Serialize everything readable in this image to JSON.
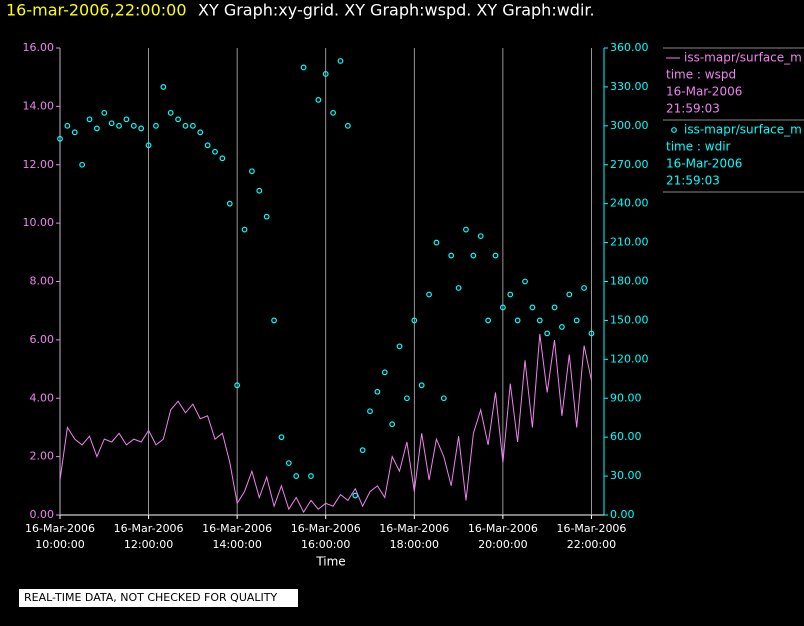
{
  "chart_data": {
    "type": "line_scatter",
    "title_time": "16-mar-2006,22:00:00",
    "title": "XY Graph:xy-grid.  XY Graph:wspd.  XY Graph:wdir.",
    "xlabel": "Time",
    "footer": "REAL-TIME DATA, NOT CHECKED FOR QUALITY",
    "xlim": [
      "2006-03-16T10:00",
      "2006-03-16T22:17"
    ],
    "xticks": [
      {
        "value": "2006-03-16T10:00",
        "label": "16-Mar-2006 10:00:00"
      },
      {
        "value": "2006-03-16T12:00",
        "label": "16-Mar-2006 12:00:00"
      },
      {
        "value": "2006-03-16T14:00",
        "label": "16-Mar-2006 14:00:00"
      },
      {
        "value": "2006-03-16T16:00",
        "label": "16-Mar-2006 16:00:00"
      },
      {
        "value": "2006-03-16T18:00",
        "label": "16-Mar-2006 18:00:00"
      },
      {
        "value": "2006-03-16T20:00",
        "label": "16-Mar-2006 20:00:00"
      },
      {
        "value": "2006-03-16T22:00",
        "label": "16-Mar-2006 22:00:00"
      }
    ],
    "ylim": [
      0,
      16
    ],
    "yticks": [
      {
        "value": 0,
        "label": "0.00"
      },
      {
        "value": 2,
        "label": "2.00"
      },
      {
        "value": 4,
        "label": "4.00"
      },
      {
        "value": 6,
        "label": "6.00"
      },
      {
        "value": 8,
        "label": "8.00"
      },
      {
        "value": 10,
        "label": "10.00"
      },
      {
        "value": 12,
        "label": "12.00"
      },
      {
        "value": 14,
        "label": "14.00"
      },
      {
        "value": 16,
        "label": "16.00"
      }
    ],
    "y2lim": [
      0,
      360
    ],
    "y2ticks": [
      {
        "value": 0,
        "label": "0.00"
      },
      {
        "value": 30,
        "label": "30.00"
      },
      {
        "value": 60,
        "label": "60.00"
      },
      {
        "value": 90,
        "label": "90.00"
      },
      {
        "value": 120,
        "label": "120.00"
      },
      {
        "value": 150,
        "label": "150.00"
      },
      {
        "value": 180,
        "label": "180.00"
      },
      {
        "value": 210,
        "label": "210.00"
      },
      {
        "value": 240,
        "label": "240.00"
      },
      {
        "value": 270,
        "label": "270.00"
      },
      {
        "value": 300,
        "label": "300.00"
      },
      {
        "value": 330,
        "label": "330.00"
      },
      {
        "value": 360,
        "label": "360.00"
      }
    ],
    "grid": true,
    "x": [
      "2006-03-16T10:00",
      "2006-03-16T10:10",
      "2006-03-16T10:20",
      "2006-03-16T10:30",
      "2006-03-16T10:40",
      "2006-03-16T10:50",
      "2006-03-16T11:00",
      "2006-03-16T11:10",
      "2006-03-16T11:20",
      "2006-03-16T11:30",
      "2006-03-16T11:40",
      "2006-03-16T11:50",
      "2006-03-16T12:00",
      "2006-03-16T12:10",
      "2006-03-16T12:20",
      "2006-03-16T12:30",
      "2006-03-16T12:40",
      "2006-03-16T12:50",
      "2006-03-16T13:00",
      "2006-03-16T13:10",
      "2006-03-16T13:20",
      "2006-03-16T13:30",
      "2006-03-16T13:40",
      "2006-03-16T13:50",
      "2006-03-16T14:00",
      "2006-03-16T14:10",
      "2006-03-16T14:20",
      "2006-03-16T14:30",
      "2006-03-16T14:40",
      "2006-03-16T14:50",
      "2006-03-16T15:00",
      "2006-03-16T15:10",
      "2006-03-16T15:20",
      "2006-03-16T15:30",
      "2006-03-16T15:40",
      "2006-03-16T15:50",
      "2006-03-16T16:00",
      "2006-03-16T16:10",
      "2006-03-16T16:20",
      "2006-03-16T16:30",
      "2006-03-16T16:40",
      "2006-03-16T16:50",
      "2006-03-16T17:00",
      "2006-03-16T17:10",
      "2006-03-16T17:20",
      "2006-03-16T17:30",
      "2006-03-16T17:40",
      "2006-03-16T17:50",
      "2006-03-16T18:00",
      "2006-03-16T18:10",
      "2006-03-16T18:20",
      "2006-03-16T18:30",
      "2006-03-16T18:40",
      "2006-03-16T18:50",
      "2006-03-16T19:00",
      "2006-03-16T19:10",
      "2006-03-16T19:20",
      "2006-03-16T19:30",
      "2006-03-16T19:40",
      "2006-03-16T19:50",
      "2006-03-16T20:00",
      "2006-03-16T20:10",
      "2006-03-16T20:20",
      "2006-03-16T20:30",
      "2006-03-16T20:40",
      "2006-03-16T20:50",
      "2006-03-16T21:00",
      "2006-03-16T21:10",
      "2006-03-16T21:20",
      "2006-03-16T21:30",
      "2006-03-16T21:40",
      "2006-03-16T21:50",
      "2006-03-16T22:00"
    ],
    "series": [
      {
        "name": "iss-mapr/surface_m",
        "legend_lines": [
          "time : wspd",
          "16-Mar-2006",
          "21:59:03"
        ],
        "color": "#ee82ee",
        "values": [
          1.2,
          3.0,
          2.6,
          2.4,
          2.7,
          2.0,
          2.6,
          2.5,
          2.8,
          2.4,
          2.6,
          2.5,
          2.9,
          2.4,
          2.6,
          3.6,
          3.9,
          3.5,
          3.8,
          3.3,
          3.4,
          2.6,
          2.8,
          1.8,
          0.4,
          0.8,
          1.5,
          0.6,
          1.3,
          0.3,
          1.0,
          0.2,
          0.6,
          0.1,
          0.5,
          0.2,
          0.4,
          0.3,
          0.7,
          0.5,
          0.9,
          0.3,
          0.8,
          1.0,
          0.6,
          2.0,
          1.5,
          2.5,
          0.8,
          2.8,
          1.2,
          2.6,
          2.0,
          1.0,
          2.7,
          0.5,
          2.8,
          3.6,
          2.4,
          4.2,
          1.8,
          4.5,
          2.5,
          5.3,
          3.0,
          6.2,
          4.2,
          6.0,
          3.4,
          5.5,
          3.0,
          5.8,
          4.6
        ]
      },
      {
        "name": "iss-mapr/surface_m",
        "legend_lines": [
          "time : wdir",
          "16-Mar-2006",
          "21:59:03"
        ],
        "color": "#00ffff",
        "axis": "y2",
        "values": [
          290,
          300,
          295,
          270,
          305,
          298,
          310,
          302,
          300,
          305,
          300,
          298,
          285,
          300,
          330,
          310,
          305,
          300,
          300,
          295,
          285,
          280,
          275,
          240,
          100,
          220,
          265,
          250,
          230,
          150,
          60,
          40,
          30,
          345,
          30,
          320,
          340,
          310,
          350,
          300,
          15,
          50,
          80,
          95,
          110,
          70,
          130,
          90,
          150,
          100,
          170,
          210,
          90,
          200,
          175,
          220,
          200,
          215,
          150,
          200,
          160,
          170,
          150,
          180,
          160,
          150,
          140,
          160,
          145,
          170,
          150,
          175,
          140
        ]
      }
    ]
  }
}
